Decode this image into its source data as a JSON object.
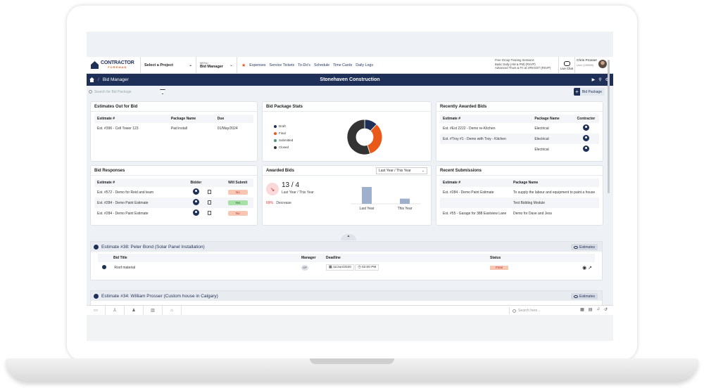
{
  "header": {
    "logo_line1": "CONTRACTOR",
    "logo_line2": "FOREMAN",
    "project_select": "Select a Project",
    "menu_label": "MENU",
    "menu_value": "Bid Manager",
    "quick_links": [
      "Expenses",
      "Service Tickets",
      "To-Do's",
      "Schedule",
      "Time Cards",
      "Daily Logs"
    ],
    "training_line1": "Free Group Training Sessions",
    "training_line2": "Basic Daily (AM & PM) (RSVP)",
    "training_line3": "Advanced Thurs & Fri at 1PM EST (RSVP)",
    "live_chat": "Live Chat",
    "user_name": "Chris Prosser",
    "user_sub": "User (195555)"
  },
  "titlebar": {
    "module": "Bid Manager",
    "company": "Stonehaven Construction"
  },
  "toolbar": {
    "search_placeholder": "Search for Bid Package",
    "bid_package_button": "Bid Package"
  },
  "estimates_out": {
    "title": "Estimates Out for Bid",
    "columns": [
      "Estimate #",
      "Package Name",
      "Due"
    ],
    "rows": [
      [
        "Est. #396 - Cell Tower 123",
        "Pad install",
        "01/May/2024"
      ]
    ]
  },
  "bid_stats": {
    "title": "Bid Package Stats",
    "legend": [
      {
        "label": "Draft",
        "color": "#1f3058"
      },
      {
        "label": "Final",
        "color": "#e8591a"
      },
      {
        "label": "Submitted",
        "color": "#4a9a6a"
      },
      {
        "label": "Closed",
        "color": "#333333"
      }
    ]
  },
  "chart_data": {
    "type": "pie",
    "categories": [
      "Draft",
      "Final",
      "Submitted",
      "Closed"
    ],
    "values": [
      12,
      33,
      0,
      55
    ],
    "title": "Bid Package Stats"
  },
  "recent_awarded": {
    "title": "Recently Awarded Bids",
    "columns": [
      "Estimate #",
      "Package Name",
      "Contractor"
    ],
    "rows": [
      [
        "Est. #Est 2222 - Demo re-Kitchen",
        "Electrical"
      ],
      [
        "Est. #Troy #1 - Demo with Troy - Kitchen",
        "Electrical"
      ],
      [
        "",
        "Electrical"
      ]
    ]
  },
  "bid_responses": {
    "title": "Bid Responses",
    "columns": [
      "Estimate #",
      "Bidder",
      "Will Submit"
    ],
    "rows": [
      {
        "estimate": "Est. #572 - Demo for Reid and team",
        "submit": "No"
      },
      {
        "estimate": "Est. #284 - Demo Paint Estimate",
        "submit": "Yes"
      },
      {
        "estimate": "Est. #284 - Demo Paint Estimate",
        "submit": "No"
      }
    ]
  },
  "awarded_bids": {
    "title": "Awarded Bids",
    "period": "Last Year / This Year",
    "ratio": "13 / 4",
    "ratio_label": "Last Year / This Year",
    "change_pct": "69%",
    "change_label": "Decrease",
    "bars": [
      {
        "label": "Last Year",
        "value": 13
      },
      {
        "label": "This Year",
        "value": 4
      }
    ]
  },
  "recent_submissions": {
    "title": "Recent Submissions",
    "columns": [
      "Estimate #",
      "Package Name"
    ],
    "rows": [
      [
        "Est. #284 - Demo Paint Estimate",
        "To supply the labour and equipment to paint a house"
      ],
      [
        "",
        "Test Bidding Module"
      ],
      [
        "Est. #55 - Garage for 388 Eastview Lane",
        "Demo for Dave and Jess"
      ]
    ]
  },
  "estimate_cards": [
    {
      "title": "Estimate #38: Peter Bond (Solar Panel Installation)",
      "button": "Estimates",
      "columns": [
        "Bid Title",
        "Manager",
        "Deadline",
        "Status"
      ],
      "rows": [
        {
          "bid_title": "Roof material",
          "manager": "CP",
          "date": "11/Jun/2020",
          "time": "02:00 PM",
          "status": "Final"
        }
      ]
    },
    {
      "title": "Estimate #34: William Prosser (Custom house in Calgary)",
      "button": "Estimates"
    }
  ],
  "bottombar": {
    "search_placeholder": "Search here..."
  }
}
